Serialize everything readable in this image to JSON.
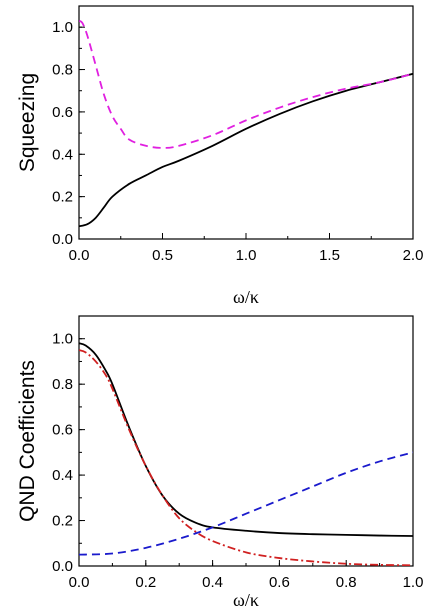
{
  "chart_data": [
    {
      "type": "line",
      "title": "",
      "xlabel": "ω/κ",
      "ylabel": "Squeezing",
      "xlim": [
        0.0,
        2.0
      ],
      "ylim": [
        0.0,
        1.1
      ],
      "xticks": [
        "0.0",
        "0.5",
        "1.0",
        "1.5",
        "2.0"
      ],
      "yticks": [
        "0.0",
        "0.2",
        "0.4",
        "0.6",
        "0.8",
        "1.0"
      ],
      "grid": false,
      "series": [
        {
          "style": "solid",
          "color": "#000000",
          "x": [
            0.0,
            0.05,
            0.1,
            0.15,
            0.2,
            0.3,
            0.4,
            0.5,
            0.6,
            0.8,
            1.0,
            1.2,
            1.4,
            1.6,
            1.8,
            2.0
          ],
          "y": [
            0.06,
            0.07,
            0.1,
            0.15,
            0.2,
            0.26,
            0.3,
            0.34,
            0.37,
            0.44,
            0.52,
            0.59,
            0.65,
            0.7,
            0.74,
            0.78
          ]
        },
        {
          "style": "dashed",
          "color": "#e020e0",
          "x": [
            0.0,
            0.02,
            0.05,
            0.1,
            0.15,
            0.2,
            0.25,
            0.3,
            0.4,
            0.5,
            0.6,
            0.8,
            1.0,
            1.2,
            1.4,
            1.6,
            1.8,
            2.0
          ],
          "y": [
            1.03,
            1.02,
            0.96,
            0.82,
            0.68,
            0.58,
            0.52,
            0.47,
            0.44,
            0.43,
            0.44,
            0.49,
            0.56,
            0.62,
            0.67,
            0.71,
            0.74,
            0.78
          ]
        }
      ]
    },
    {
      "type": "line",
      "title": "",
      "xlabel": "ω/κ",
      "ylabel": "QND Coefficients",
      "xlim": [
        0.0,
        1.0
      ],
      "ylim": [
        0.0,
        1.1
      ],
      "xticks": [
        "0.0",
        "0.2",
        "0.4",
        "0.6",
        "0.8",
        "1.0"
      ],
      "yticks": [
        "0.0",
        "0.2",
        "0.4",
        "0.6",
        "0.8",
        "1.0"
      ],
      "grid": false,
      "series": [
        {
          "style": "solid",
          "color": "#000000",
          "x": [
            0.0,
            0.02,
            0.05,
            0.08,
            0.1,
            0.15,
            0.2,
            0.25,
            0.3,
            0.35,
            0.4,
            0.5,
            0.6,
            0.7,
            0.8,
            0.9,
            1.0
          ],
          "y": [
            0.98,
            0.97,
            0.93,
            0.86,
            0.8,
            0.61,
            0.44,
            0.31,
            0.23,
            0.19,
            0.17,
            0.155,
            0.145,
            0.14,
            0.137,
            0.134,
            0.132
          ]
        },
        {
          "style": "dashdot",
          "color": "#d02020",
          "x": [
            0.0,
            0.02,
            0.05,
            0.08,
            0.1,
            0.15,
            0.2,
            0.25,
            0.3,
            0.35,
            0.4,
            0.5,
            0.6,
            0.7,
            0.8,
            0.9,
            1.0
          ],
          "y": [
            0.95,
            0.94,
            0.9,
            0.84,
            0.78,
            0.6,
            0.44,
            0.31,
            0.21,
            0.15,
            0.11,
            0.06,
            0.035,
            0.02,
            0.01,
            0.005,
            0.003
          ]
        },
        {
          "style": "dashed",
          "color": "#1a1acc",
          "x": [
            0.0,
            0.1,
            0.2,
            0.3,
            0.4,
            0.5,
            0.6,
            0.7,
            0.8,
            0.9,
            1.0
          ],
          "y": [
            0.05,
            0.055,
            0.08,
            0.12,
            0.17,
            0.23,
            0.29,
            0.35,
            0.41,
            0.46,
            0.5
          ]
        }
      ]
    }
  ]
}
